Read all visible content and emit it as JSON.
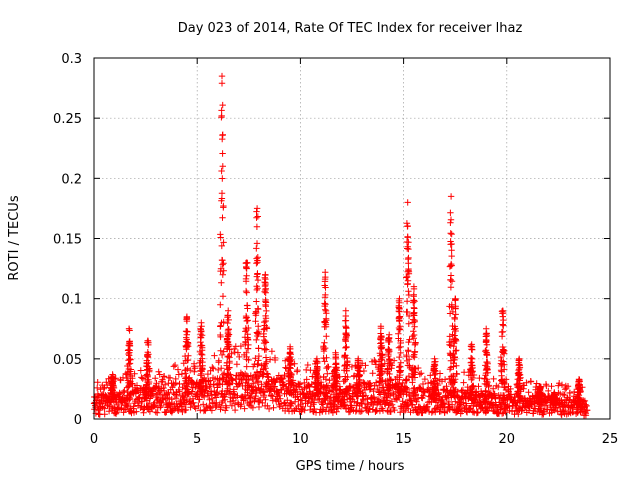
{
  "chart_data": {
    "type": "scatter",
    "title": "Day 023 of 2014, Rate Of TEC Index for receiver lhaz",
    "xlabel": "GPS time / hours",
    "ylabel": "ROTI / TECUs",
    "xlim": [
      0,
      25
    ],
    "ylim": [
      0,
      0.3
    ],
    "xticks": [
      0,
      5,
      10,
      15,
      20,
      25
    ],
    "yticks": [
      0,
      0.05,
      0.1,
      0.15,
      0.2,
      0.25,
      0.3
    ],
    "xtick_labels": [
      "0",
      "5",
      "10",
      "15",
      "20",
      "25"
    ],
    "ytick_labels": [
      "0",
      "0.05",
      "0.1",
      "0.15",
      "0.2",
      "0.25",
      "0.3"
    ],
    "grid": true,
    "marker": "+",
    "color": "#ff0000",
    "data_span_hours": [
      0,
      23.9
    ],
    "peaks": [
      {
        "x": 0.9,
        "y": 0.037
      },
      {
        "x": 1.7,
        "y": 0.075
      },
      {
        "x": 2.6,
        "y": 0.065
      },
      {
        "x": 4.5,
        "y": 0.085
      },
      {
        "x": 5.2,
        "y": 0.08
      },
      {
        "x": 6.2,
        "y": 0.285
      },
      {
        "x": 6.5,
        "y": 0.09
      },
      {
        "x": 7.4,
        "y": 0.13
      },
      {
        "x": 7.9,
        "y": 0.175
      },
      {
        "x": 8.3,
        "y": 0.12
      },
      {
        "x": 9.5,
        "y": 0.06
      },
      {
        "x": 10.8,
        "y": 0.05
      },
      {
        "x": 11.2,
        "y": 0.122
      },
      {
        "x": 11.7,
        "y": 0.055
      },
      {
        "x": 12.2,
        "y": 0.09
      },
      {
        "x": 12.8,
        "y": 0.05
      },
      {
        "x": 13.9,
        "y": 0.077
      },
      {
        "x": 14.3,
        "y": 0.07
      },
      {
        "x": 14.8,
        "y": 0.1
      },
      {
        "x": 15.2,
        "y": 0.18
      },
      {
        "x": 15.5,
        "y": 0.11
      },
      {
        "x": 16.5,
        "y": 0.05
      },
      {
        "x": 17.3,
        "y": 0.185
      },
      {
        "x": 17.5,
        "y": 0.1
      },
      {
        "x": 18.3,
        "y": 0.062
      },
      {
        "x": 19.0,
        "y": 0.075
      },
      {
        "x": 19.8,
        "y": 0.09
      },
      {
        "x": 20.6,
        "y": 0.05
      },
      {
        "x": 21.6,
        "y": 0.027
      },
      {
        "x": 22.3,
        "y": 0.022
      },
      {
        "x": 23.5,
        "y": 0.033
      }
    ],
    "baseline": [
      {
        "x": 0,
        "y": 0.012
      },
      {
        "x": 2,
        "y": 0.016
      },
      {
        "x": 4,
        "y": 0.018
      },
      {
        "x": 6,
        "y": 0.022
      },
      {
        "x": 8,
        "y": 0.025
      },
      {
        "x": 10,
        "y": 0.018
      },
      {
        "x": 12,
        "y": 0.017
      },
      {
        "x": 14,
        "y": 0.02
      },
      {
        "x": 16,
        "y": 0.016
      },
      {
        "x": 18,
        "y": 0.015
      },
      {
        "x": 20,
        "y": 0.013
      },
      {
        "x": 22,
        "y": 0.012
      },
      {
        "x": 23.9,
        "y": 0.01
      }
    ]
  }
}
